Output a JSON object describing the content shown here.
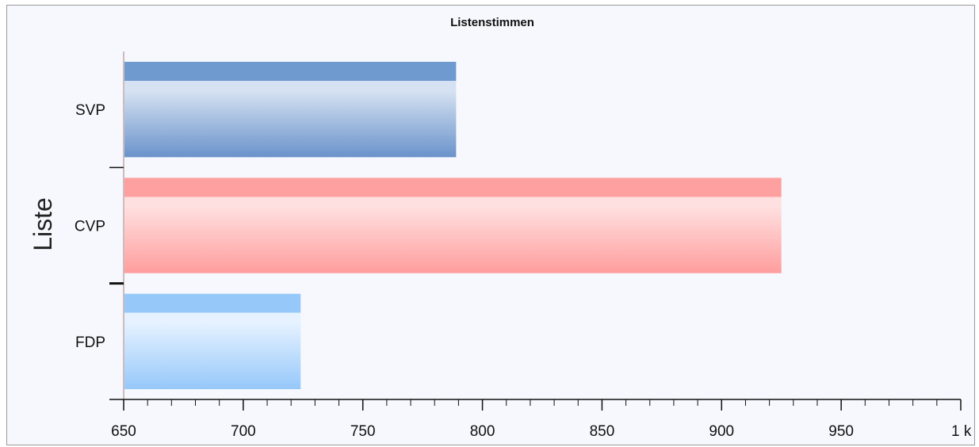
{
  "chart_data": {
    "type": "bar",
    "orientation": "horizontal",
    "title": "Listenstimmen",
    "ylabel": "Liste",
    "xlabel": "",
    "categories": [
      "SVP",
      "CVP",
      "FDP"
    ],
    "values": [
      789,
      925,
      724
    ],
    "xlim": [
      650,
      1000
    ],
    "x_ticks": [
      650,
      700,
      750,
      800,
      850,
      900,
      950,
      1000
    ],
    "x_tick_labels": [
      "650",
      "700",
      "750",
      "800",
      "850",
      "900",
      "950",
      "1 k"
    ],
    "grid": false,
    "legend": "none",
    "bar_colors": [
      {
        "top": "#6f9ad0",
        "light": "#d6e2f2",
        "dark": "#6a93cb"
      },
      {
        "top": "#ffa0a0",
        "light": "#ffe0e0",
        "dark": "#ff9d9d"
      },
      {
        "top": "#96c8fa",
        "light": "#e6f2ff",
        "dark": "#96c8fa"
      }
    ]
  }
}
